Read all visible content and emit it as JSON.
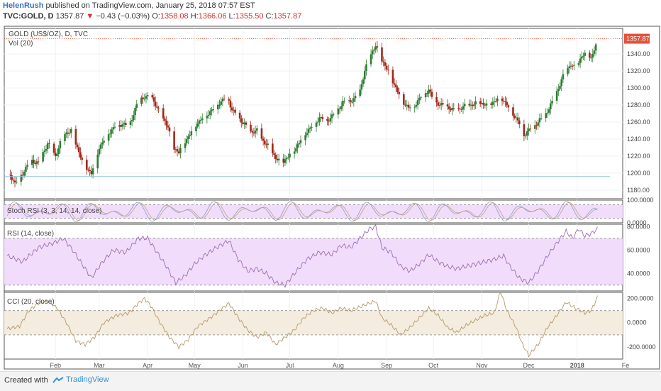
{
  "header": {
    "user": "HelenRush",
    "published": "published on TradingView.com, January 25, 2018 07:57 EST",
    "symbol": "TVC:GOLD, D",
    "last": "1357.87",
    "change": "−0.43 (−0.03%)",
    "o_label": "O:",
    "o_val": "1358.08",
    "h_label": "H:",
    "h_val": "1366.06",
    "l_label": "L:",
    "l_val": "1355.50",
    "c_label": "C:",
    "c_val": "1357.87"
  },
  "footer": {
    "created": "Created with",
    "brand": "TradingView"
  },
  "colors": {
    "up": "#26a69a",
    "down": "#ef5350",
    "candle_up": "#2e7d32",
    "candle_down": "#a02818",
    "rsi_line": "#9c6fb0",
    "cci_line": "#b49a6a",
    "rsi_band": "#f1dcfb",
    "cci_band": "#f4ecde",
    "price_tag": "#e0533d"
  },
  "chart_data": [
    {
      "type": "candlestick",
      "title": "GOLD (US$/OZ), D, TVC",
      "subtitle": "Vol (20)",
      "last_price": "1357.87",
      "ylim": [
        1170,
        1370
      ],
      "yticks": [
        "1340.00",
        "1320.00",
        "1300.00",
        "1280.00",
        "1260.00",
        "1240.00",
        "1220.00",
        "1200.00",
        "1180.00"
      ],
      "ytick_values": [
        1340,
        1320,
        1300,
        1280,
        1260,
        1240,
        1220,
        1200,
        1180
      ],
      "xticks": [
        "Feb",
        "Mar",
        "Apr",
        "May",
        "Jun",
        "Jul",
        "Aug",
        "Sep",
        "Oct",
        "Nov",
        "Dec",
        "2018",
        "Fe"
      ],
      "xtick_days": [
        31,
        59,
        90,
        120,
        151,
        181,
        212,
        243,
        273,
        304,
        334,
        365,
        396
      ],
      "x_start": "2017-01-01",
      "anchors": [
        [
          0,
          1205
        ],
        [
          5,
          1188
        ],
        [
          10,
          1200
        ],
        [
          15,
          1215
        ],
        [
          20,
          1212
        ],
        [
          26,
          1235
        ],
        [
          31,
          1220
        ],
        [
          36,
          1245
        ],
        [
          41,
          1250
        ],
        [
          46,
          1225
        ],
        [
          49,
          1210
        ],
        [
          54,
          1200
        ],
        [
          59,
          1230
        ],
        [
          64,
          1245
        ],
        [
          69,
          1255
        ],
        [
          74,
          1258
        ],
        [
          78,
          1255
        ],
        [
          84,
          1285
        ],
        [
          88,
          1290
        ],
        [
          93,
          1288
        ],
        [
          98,
          1270
        ],
        [
          103,
          1255
        ],
        [
          106,
          1230
        ],
        [
          110,
          1225
        ],
        [
          115,
          1240
        ],
        [
          120,
          1255
        ],
        [
          125,
          1265
        ],
        [
          130,
          1272
        ],
        [
          136,
          1283
        ],
        [
          141,
          1290
        ],
        [
          144,
          1275
        ],
        [
          148,
          1265
        ],
        [
          152,
          1258
        ],
        [
          155,
          1248
        ],
        [
          160,
          1250
        ],
        [
          163,
          1240
        ],
        [
          168,
          1230
        ],
        [
          172,
          1218
        ],
        [
          176,
          1212
        ],
        [
          180,
          1220
        ],
        [
          185,
          1230
        ],
        [
          190,
          1245
        ],
        [
          195,
          1255
        ],
        [
          200,
          1265
        ],
        [
          205,
          1262
        ],
        [
          210,
          1270
        ],
        [
          215,
          1283
        ],
        [
          220,
          1285
        ],
        [
          225,
          1290
        ],
        [
          229,
          1320
        ],
        [
          233,
          1340
        ],
        [
          236,
          1350
        ],
        [
          239,
          1336
        ],
        [
          244,
          1320
        ],
        [
          249,
          1300
        ],
        [
          253,
          1285
        ],
        [
          257,
          1277
        ],
        [
          261,
          1280
        ],
        [
          266,
          1292
        ],
        [
          270,
          1298
        ],
        [
          273,
          1285
        ],
        [
          278,
          1280
        ],
        [
          283,
          1277
        ],
        [
          287,
          1273
        ],
        [
          292,
          1278
        ],
        [
          297,
          1280
        ],
        [
          302,
          1283
        ],
        [
          307,
          1280
        ],
        [
          312,
          1284
        ],
        [
          316,
          1290
        ],
        [
          320,
          1280
        ],
        [
          324,
          1270
        ],
        [
          328,
          1258
        ],
        [
          331,
          1245
        ],
        [
          335,
          1252
        ],
        [
          340,
          1260
        ],
        [
          345,
          1270
        ],
        [
          349,
          1283
        ],
        [
          353,
          1300
        ],
        [
          357,
          1318
        ],
        [
          361,
          1328
        ],
        [
          364,
          1322
        ],
        [
          368,
          1338
        ],
        [
          372,
          1340
        ],
        [
          374,
          1335
        ],
        [
          377,
          1350
        ],
        [
          378,
          1357.87
        ]
      ]
    },
    {
      "type": "line",
      "title": "Stoch RSI (3, 3, 14, 14, close)",
      "ylim": [
        0,
        100
      ],
      "yticks": [
        "100.0000",
        "0.0000"
      ],
      "ytick_values": [
        100,
        0
      ],
      "band": [
        20,
        80
      ]
    },
    {
      "type": "line",
      "title": "RSI (14, close)",
      "ylim": [
        25,
        82
      ],
      "yticks": [
        "80.0000",
        "60.0000",
        "40.0000"
      ],
      "ytick_values": [
        80,
        60,
        40
      ],
      "band": [
        30,
        70
      ],
      "anchors": [
        [
          0,
          55
        ],
        [
          10,
          50
        ],
        [
          20,
          62
        ],
        [
          30,
          66
        ],
        [
          36,
          70
        ],
        [
          42,
          60
        ],
        [
          48,
          48
        ],
        [
          54,
          36
        ],
        [
          60,
          48
        ],
        [
          68,
          60
        ],
        [
          76,
          58
        ],
        [
          84,
          70
        ],
        [
          90,
          70
        ],
        [
          96,
          58
        ],
        [
          102,
          46
        ],
        [
          108,
          32
        ],
        [
          114,
          38
        ],
        [
          120,
          48
        ],
        [
          126,
          55
        ],
        [
          134,
          62
        ],
        [
          142,
          68
        ],
        [
          148,
          52
        ],
        [
          154,
          42
        ],
        [
          160,
          44
        ],
        [
          166,
          40
        ],
        [
          172,
          32
        ],
        [
          178,
          30
        ],
        [
          184,
          40
        ],
        [
          192,
          52
        ],
        [
          200,
          58
        ],
        [
          208,
          56
        ],
        [
          214,
          64
        ],
        [
          220,
          62
        ],
        [
          226,
          70
        ],
        [
          232,
          78
        ],
        [
          236,
          80
        ],
        [
          240,
          62
        ],
        [
          246,
          58
        ],
        [
          252,
          46
        ],
        [
          258,
          42
        ],
        [
          264,
          48
        ],
        [
          270,
          56
        ],
        [
          276,
          50
        ],
        [
          282,
          46
        ],
        [
          288,
          44
        ],
        [
          294,
          46
        ],
        [
          300,
          48
        ],
        [
          306,
          50
        ],
        [
          312,
          52
        ],
        [
          318,
          55
        ],
        [
          322,
          46
        ],
        [
          328,
          36
        ],
        [
          334,
          32
        ],
        [
          340,
          42
        ],
        [
          346,
          55
        ],
        [
          352,
          66
        ],
        [
          358,
          76
        ],
        [
          362,
          70
        ],
        [
          366,
          78
        ],
        [
          370,
          72
        ],
        [
          374,
          74
        ],
        [
          378,
          78
        ]
      ]
    },
    {
      "type": "line",
      "title": "CCI (20, close)",
      "ylim": [
        -300,
        250
      ],
      "yticks": [
        "200.0000",
        "0.0000",
        "-200.0000"
      ],
      "ytick_values": [
        200,
        0,
        -200
      ],
      "band": [
        -100,
        100
      ],
      "anchors": [
        [
          0,
          -50
        ],
        [
          8,
          -30
        ],
        [
          14,
          100
        ],
        [
          20,
          160
        ],
        [
          26,
          180
        ],
        [
          32,
          120
        ],
        [
          38,
          0
        ],
        [
          44,
          -150
        ],
        [
          50,
          -180
        ],
        [
          56,
          -120
        ],
        [
          62,
          0
        ],
        [
          70,
          60
        ],
        [
          78,
          80
        ],
        [
          84,
          160
        ],
        [
          88,
          200
        ],
        [
          92,
          140
        ],
        [
          98,
          0
        ],
        [
          104,
          -120
        ],
        [
          110,
          -200
        ],
        [
          116,
          -140
        ],
        [
          122,
          -30
        ],
        [
          130,
          40
        ],
        [
          136,
          100
        ],
        [
          142,
          160
        ],
        [
          148,
          40
        ],
        [
          154,
          -60
        ],
        [
          160,
          -120
        ],
        [
          166,
          -80
        ],
        [
          172,
          -180
        ],
        [
          178,
          -120
        ],
        [
          184,
          -60
        ],
        [
          190,
          40
        ],
        [
          196,
          100
        ],
        [
          202,
          120
        ],
        [
          208,
          80
        ],
        [
          214,
          120
        ],
        [
          220,
          100
        ],
        [
          226,
          130
        ],
        [
          232,
          160
        ],
        [
          236,
          180
        ],
        [
          240,
          40
        ],
        [
          246,
          -20
        ],
        [
          252,
          -100
        ],
        [
          258,
          -40
        ],
        [
          264,
          40
        ],
        [
          270,
          120
        ],
        [
          276,
          60
        ],
        [
          282,
          -40
        ],
        [
          288,
          -80
        ],
        [
          294,
          -20
        ],
        [
          300,
          20
        ],
        [
          306,
          60
        ],
        [
          312,
          80
        ],
        [
          316,
          260
        ],
        [
          320,
          100
        ],
        [
          326,
          -40
        ],
        [
          330,
          -180
        ],
        [
          334,
          -270
        ],
        [
          340,
          -180
        ],
        [
          346,
          -40
        ],
        [
          352,
          60
        ],
        [
          358,
          170
        ],
        [
          364,
          120
        ],
        [
          370,
          80
        ],
        [
          374,
          100
        ],
        [
          378,
          210
        ]
      ]
    }
  ]
}
